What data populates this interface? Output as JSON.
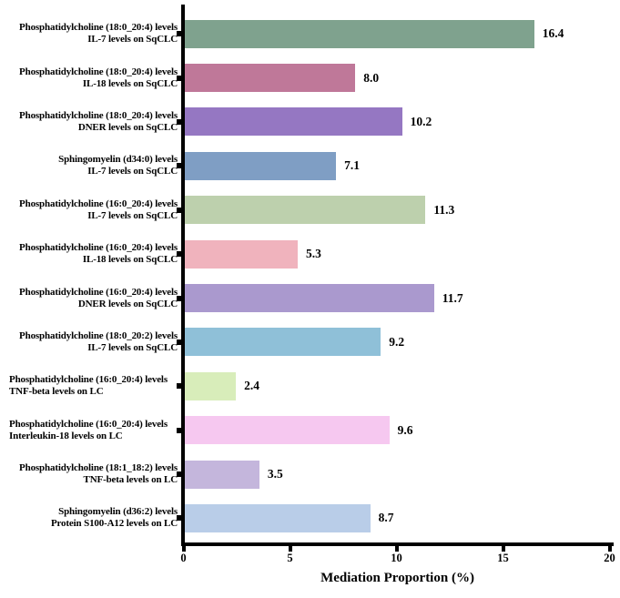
{
  "figure": {
    "background_color": "#ffffff",
    "axis_color": "#000000",
    "text_color": "#000000"
  },
  "chart_data": {
    "type": "bar",
    "orientation": "horizontal",
    "title": "",
    "xlabel": "Mediation Proportion (%)",
    "ylabel": "",
    "xlim": [
      0,
      20
    ],
    "xticks": [
      0,
      5,
      10,
      15,
      20
    ],
    "grid": false,
    "legend": false,
    "value_labels_shown": true,
    "bars": [
      {
        "label_lines": [
          "Phosphatidylcholine (18:0_20:4) levels",
          "IL-7 levels on SqCLC"
        ],
        "value": 16.4,
        "display_value": "16.4",
        "color": "#7fa28e",
        "label_align": "right"
      },
      {
        "label_lines": [
          "Phosphatidylcholine (18:0_20:4) levels",
          "IL-18 levels on SqCLC"
        ],
        "value": 8.0,
        "display_value": "8.0",
        "color": "#bf7899",
        "label_align": "right"
      },
      {
        "label_lines": [
          "Phosphatidylcholine (18:0_20:4) levels",
          "DNER levels on SqCLC"
        ],
        "value": 10.2,
        "display_value": "10.2",
        "color": "#9577c2",
        "label_align": "right"
      },
      {
        "label_lines": [
          "Sphingomyelin (d34:0) levels",
          "IL-7 levels on SqCLC"
        ],
        "value": 7.1,
        "display_value": "7.1",
        "color": "#7f9ec4",
        "label_align": "right"
      },
      {
        "label_lines": [
          "Phosphatidylcholine (16:0_20:4) levels",
          "IL-7 levels on SqCLC"
        ],
        "value": 11.3,
        "display_value": "11.3",
        "color": "#bdd0ad",
        "label_align": "right"
      },
      {
        "label_lines": [
          "Phosphatidylcholine (16:0_20:4) levels",
          "IL-18 levels on SqCLC"
        ],
        "value": 5.3,
        "display_value": "5.3",
        "color": "#f0b3bd",
        "label_align": "right"
      },
      {
        "label_lines": [
          "Phosphatidylcholine (16:0_20:4) levels",
          "DNER levels on SqCLC"
        ],
        "value": 11.7,
        "display_value": "11.7",
        "color": "#aa99ce",
        "label_align": "right"
      },
      {
        "label_lines": [
          "Phosphatidylcholine (18:0_20:2) levels",
          "IL-7 levels on SqCLC"
        ],
        "value": 9.2,
        "display_value": "9.2",
        "color": "#8fc0d8",
        "label_align": "right"
      },
      {
        "label_lines": [
          "Phosphatidylcholine (16:0_20:4) levels",
          "TNF-beta levels on LC"
        ],
        "value": 2.4,
        "display_value": "2.4",
        "color": "#d8edba",
        "label_align": "left"
      },
      {
        "label_lines": [
          "Phosphatidylcholine (16:0_20:4) levels",
          "Interleukin-18 levels on LC"
        ],
        "value": 9.6,
        "display_value": "9.6",
        "color": "#f6c8f0",
        "label_align": "left"
      },
      {
        "label_lines": [
          "Phosphatidylcholine (18:1_18:2) levels",
          "TNF-beta levels on LC"
        ],
        "value": 3.5,
        "display_value": "3.5",
        "color": "#c4b6dc",
        "label_align": "right"
      },
      {
        "label_lines": [
          "Sphingomyelin (d36:2) levels",
          "Protein S100-A12 levels on LC"
        ],
        "value": 8.7,
        "display_value": "8.7",
        "color": "#b9cde8",
        "label_align": "right"
      }
    ]
  }
}
